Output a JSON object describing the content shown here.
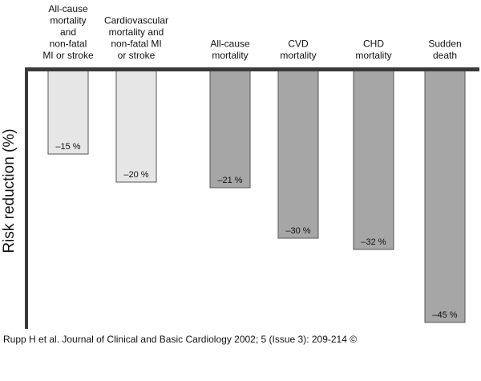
{
  "chart_data": {
    "type": "bar",
    "categories": [
      [
        "All-cause",
        "mortality",
        "and",
        "non-fatal",
        "MI or stroke"
      ],
      [
        "Cardiovascular",
        "mortality and",
        "non-fatal MI",
        "or stroke"
      ],
      [
        "All-cause",
        "mortality"
      ],
      [
        "CVD",
        "mortality"
      ],
      [
        "CHD",
        "mortality"
      ],
      [
        "Sudden",
        "death"
      ]
    ],
    "values": [
      -15,
      -20,
      -21,
      -30,
      -32,
      -45
    ],
    "value_labels": [
      "–15 %",
      "–20 %",
      "–21 %",
      "–30 %",
      "–32 %",
      "–45 %"
    ],
    "bar_colors": [
      "#e6e6e6",
      "#e6e6e6",
      "#a6a6a6",
      "#a6a6a6",
      "#a6a6a6",
      "#a6a6a6"
    ],
    "ylabel": "Risk reduction (%)",
    "ylim": [
      -50,
      0
    ],
    "grid": false
  },
  "citation": "Rupp H et al. Journal of Clinical and Basic Cardiology 2002; 5 (Issue 3): 209-214 ©"
}
